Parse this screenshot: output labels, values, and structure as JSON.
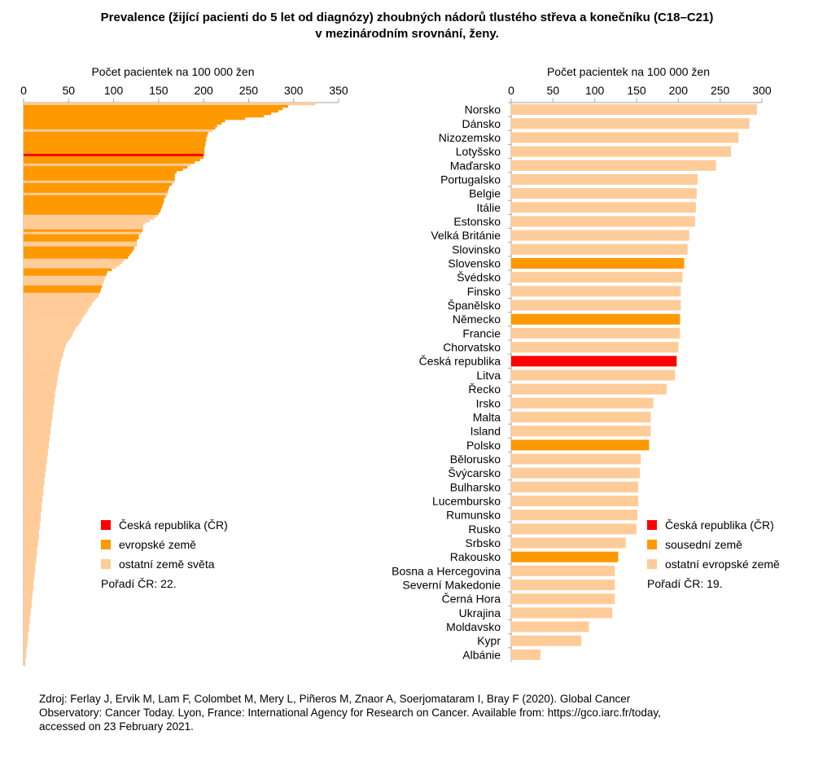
{
  "title": {
    "line1": "Prevalence (žijící pacienti do 5 let od diagnózy) zhoubných nádorů tlustého střeva a konečníku (C18–C21)",
    "line2": "v mezinárodním srovnání, ženy."
  },
  "source": {
    "line1": "Zdroj: Ferlay J, Ervik M, Lam F, Colombet M, Mery L, Piñeros M, Znaor A, Soerjomataram I, Bray F (2020). Global Cancer",
    "line2": "Observatory: Cancer Today. Lyon, France: International Agency for Research on Cancer. Available from: https://gco.iarc.fr/today,",
    "line3": "accessed on 23 February 2021."
  },
  "colors": {
    "czech": "#ff0000",
    "highlight": "#ff9900",
    "other": "#ffcc99",
    "axis": "#a6a6a6"
  },
  "chart_data": [
    {
      "type": "bar",
      "orientation": "horizontal",
      "xlabel": "Počet pacientek na 100 000 žen",
      "xlim": [
        0,
        350
      ],
      "xticks": [
        0,
        50,
        100,
        150,
        200,
        250,
        300,
        350
      ],
      "legend": [
        {
          "label": "Česká republika (ČR)",
          "color_key": "czech"
        },
        {
          "label": "evropské země",
          "color_key": "highlight"
        },
        {
          "label": "ostatní země světa",
          "color_key": "other"
        }
      ],
      "rank_note": "Pořadí ČR: 22.",
      "values": [
        324,
        294,
        288,
        283,
        275,
        267,
        246,
        224,
        220,
        215,
        213,
        210,
        205,
        204,
        203,
        203,
        202,
        202,
        201,
        201,
        201,
        200,
        200,
        196,
        190,
        186,
        182,
        177,
        170,
        168,
        168,
        168,
        168,
        165,
        162,
        161,
        160,
        160,
        158,
        156,
        156,
        155,
        154,
        153,
        152,
        150,
        148,
        145,
        140,
        135,
        133,
        133,
        132,
        131,
        128,
        128,
        126,
        126,
        126,
        123,
        122,
        120,
        118,
        116,
        112,
        110,
        107,
        103,
        98,
        93,
        92,
        91,
        90,
        89,
        88,
        87,
        86,
        85,
        84,
        83,
        80,
        78,
        76,
        74,
        72,
        71,
        69,
        67,
        65,
        64,
        62,
        60,
        58,
        56,
        55,
        54,
        52,
        50,
        48,
        47,
        46,
        45,
        44,
        44,
        43,
        42,
        41,
        41,
        40,
        40,
        39,
        39,
        38,
        38,
        37,
        37,
        36,
        36,
        35,
        35,
        35,
        34,
        34,
        34,
        33,
        33,
        33,
        32,
        32,
        32,
        31,
        31,
        31,
        30,
        30,
        30,
        29,
        29,
        29,
        28,
        28,
        28,
        27,
        27,
        27,
        26,
        26,
        26,
        25,
        25,
        25,
        24,
        24,
        24,
        23,
        23,
        23,
        22,
        22,
        22,
        22,
        21,
        21,
        21,
        20,
        20,
        20,
        20,
        19,
        19,
        19,
        19,
        18,
        18,
        18,
        17,
        17,
        17,
        17,
        16,
        16,
        16,
        15,
        15,
        15,
        15,
        14,
        14,
        14,
        13,
        13,
        13,
        13,
        12,
        12,
        12,
        11,
        11,
        11,
        11,
        10,
        10,
        10,
        9,
        9,
        9,
        9,
        8,
        8,
        8,
        7,
        7,
        7,
        7,
        6,
        6,
        6,
        5,
        5,
        5,
        5,
        4,
        4,
        4,
        3,
        3,
        3,
        3,
        2,
        2,
        2
      ],
      "highlight_ranks_czech": [
        22
      ],
      "highlight_ranks_european": [
        2,
        3,
        4,
        5,
        6,
        7,
        8,
        9,
        10,
        11,
        13,
        14,
        15,
        16,
        17,
        18,
        19,
        20,
        21,
        23,
        24,
        25,
        27,
        28,
        29,
        30,
        31,
        32,
        34,
        35,
        36,
        37,
        39,
        40,
        41,
        42,
        43,
        44,
        45,
        46,
        53,
        55,
        56,
        57,
        60,
        61,
        62,
        63,
        64,
        69,
        70,
        71,
        76,
        77,
        78
      ]
    },
    {
      "type": "bar",
      "orientation": "horizontal",
      "xlabel": "Počet pacientek na 100 000 žen",
      "xlim": [
        0,
        300
      ],
      "xticks": [
        0,
        50,
        100,
        150,
        200,
        250,
        300
      ],
      "legend": [
        {
          "label": "Česká republika (ČR)",
          "color_key": "czech"
        },
        {
          "label": "sousední země",
          "color_key": "highlight"
        },
        {
          "label": "ostatní evropské země",
          "color_key": "other"
        }
      ],
      "rank_note": "Pořadí ČR: 19.",
      "categories": [
        "Norsko",
        "Dánsko",
        "Nizozemsko",
        "Lotyšsko",
        "Maďarsko",
        "Portugalsko",
        "Belgie",
        "Itálie",
        "Estonsko",
        "Velká Británie",
        "Slovinsko",
        "Slovensko",
        "Švédsko",
        "Finsko",
        "Španělsko",
        "Německo",
        "Francie",
        "Chorvatsko",
        "Česká republika",
        "Litva",
        "Řecko",
        "Irsko",
        "Malta",
        "Island",
        "Polsko",
        "Bělorusko",
        "Švýcarsko",
        "Bulharsko",
        "Lucembursko",
        "Rumunsko",
        "Rusko",
        "Srbsko",
        "Rakousko",
        "Bosna a Hercegovina",
        "Severní Makedonie",
        "Černá Hora",
        "Ukrajina",
        "Moldavsko",
        "Kypr",
        "Albánie"
      ],
      "values": [
        294,
        285,
        272,
        263,
        245,
        223,
        222,
        221,
        220,
        213,
        211,
        207,
        205,
        203,
        203,
        202,
        202,
        200,
        198,
        196,
        186,
        170,
        167,
        167,
        165,
        155,
        154,
        152,
        152,
        151,
        150,
        137,
        128,
        124,
        124,
        124,
        121,
        93,
        84,
        35
      ],
      "groups": [
        "other",
        "other",
        "other",
        "other",
        "other",
        "other",
        "other",
        "other",
        "other",
        "other",
        "other",
        "highlight",
        "other",
        "other",
        "other",
        "highlight",
        "other",
        "other",
        "czech",
        "other",
        "other",
        "other",
        "other",
        "other",
        "highlight",
        "other",
        "other",
        "other",
        "other",
        "other",
        "other",
        "other",
        "highlight",
        "other",
        "other",
        "other",
        "other",
        "other",
        "other",
        "other"
      ]
    }
  ]
}
